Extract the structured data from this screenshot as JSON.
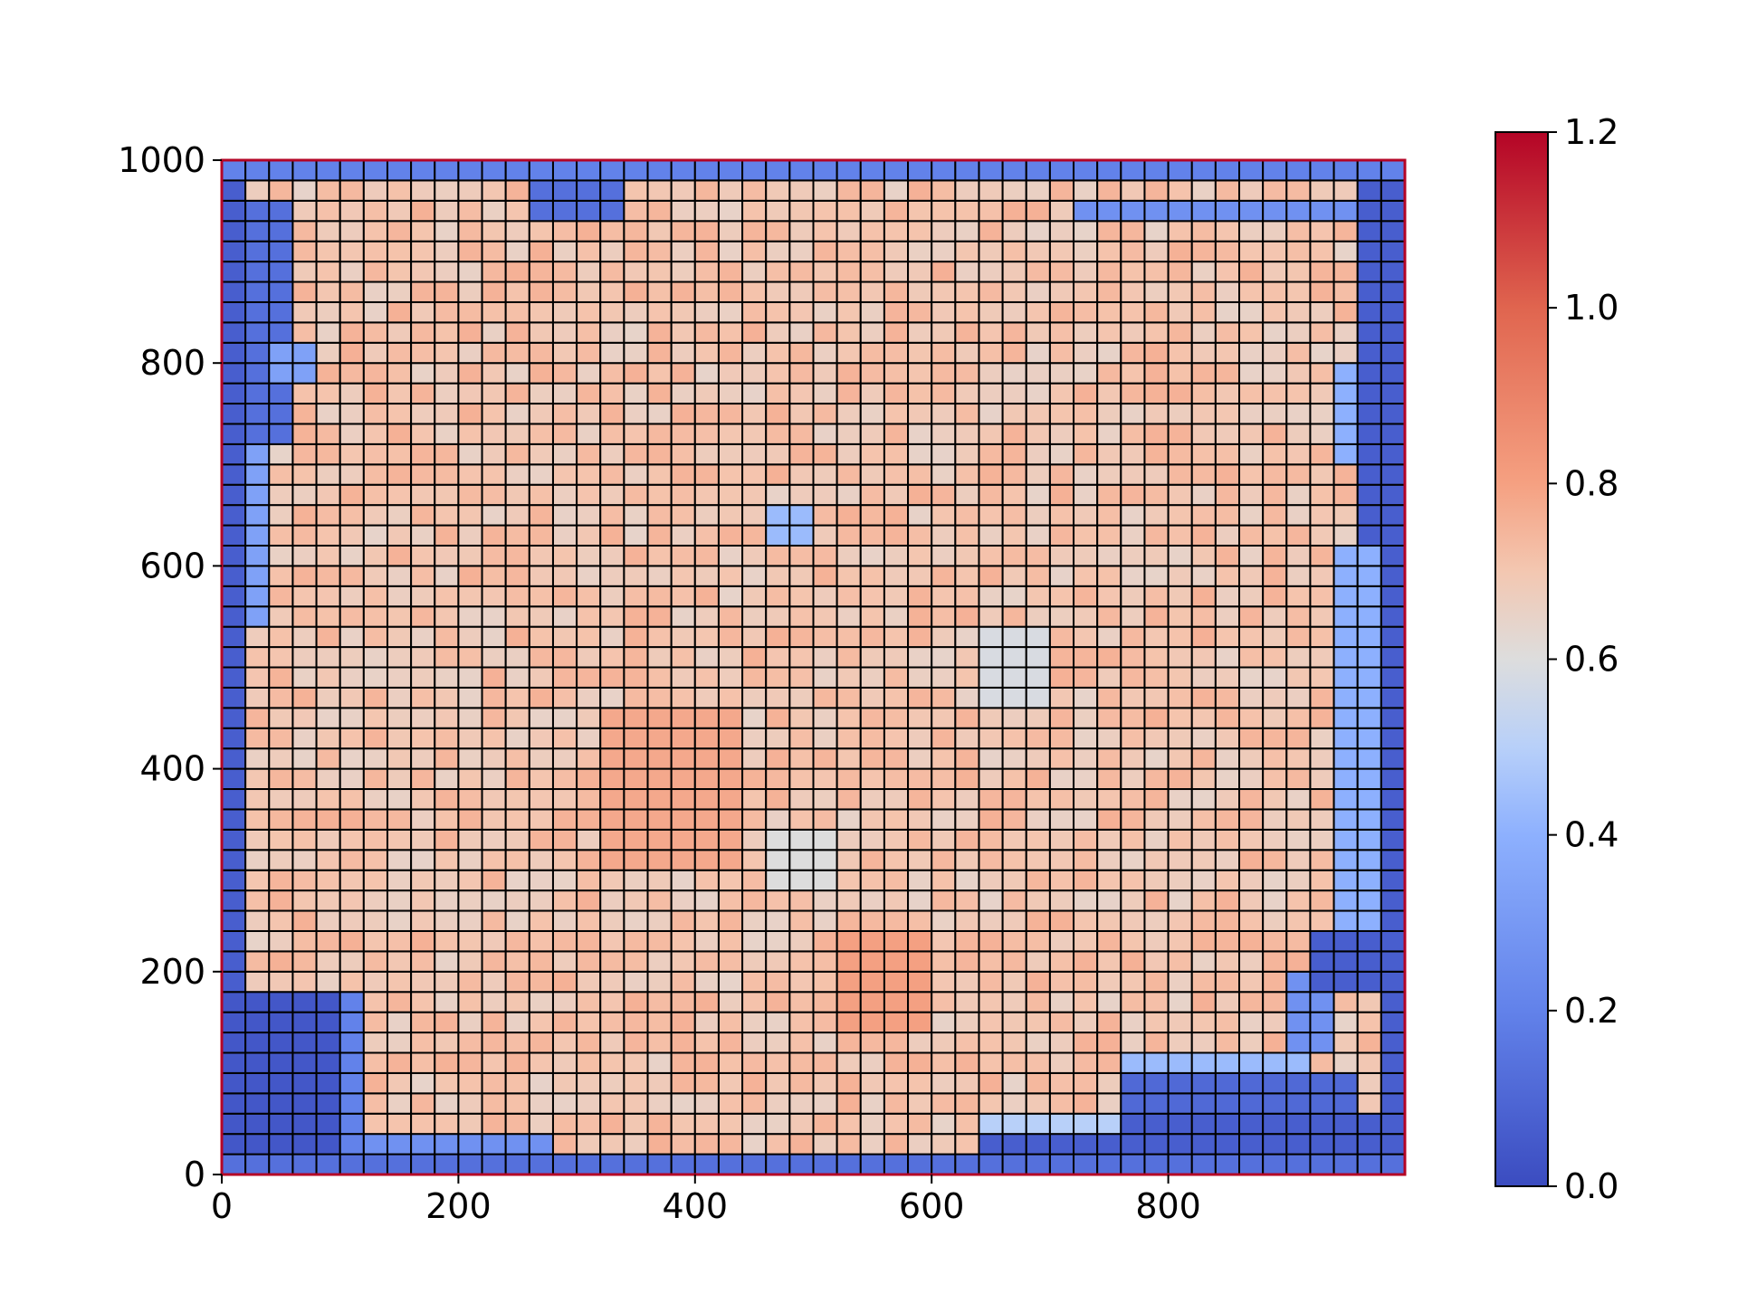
{
  "chart_data": {
    "type": "heatmap",
    "title": "",
    "xlabel": "",
    "ylabel": "",
    "xlim": [
      0,
      1000
    ],
    "ylim": [
      0,
      1000
    ],
    "grid": {
      "cols": 50,
      "rows": 50,
      "cell_size": 20
    },
    "x_ticks": [
      0,
      200,
      400,
      600,
      800
    ],
    "y_ticks": [
      0,
      200,
      400,
      600,
      800,
      1000
    ],
    "colorbar": {
      "colormap": "coolwarm",
      "min": 0.0,
      "max": 1.2,
      "ticks": [
        "0.0",
        "0.2",
        "0.4",
        "0.6",
        "0.8",
        "1.0",
        "1.2"
      ],
      "low_color": "#3b4cc0",
      "mid_color": "#dddddd",
      "high_color": "#b40426"
    },
    "cell_edge_color": "#000000",
    "boundary_color": "#b40426",
    "value_description": "Values near 0.0 (blue) form a border band along the edges, with blue blocks at the lower-left and lower-right corners and along the bottom and top edges; interior values are mostly 0.65-0.85, with a few hotter cells (~0.9) near x 520-580, y 140-240 and around x 320-440, y 300-460.",
    "regions": [
      {
        "x": [
          0,
          20
        ],
        "y": [
          0,
          1000
        ],
        "value": 0.05
      },
      {
        "x": [
          980,
          1000
        ],
        "y": [
          0,
          1000
        ],
        "value": 0.05
      },
      {
        "x": [
          0,
          1000
        ],
        "y": [
          980,
          1000
        ],
        "value": 0.15
      },
      {
        "x": [
          0,
          1000
        ],
        "y": [
          0,
          20
        ],
        "value": 0.1
      },
      {
        "x": [
          0,
          100
        ],
        "y": [
          20,
          180
        ],
        "value": 0.03
      },
      {
        "x": [
          100,
          120
        ],
        "y": [
          20,
          180
        ],
        "value": 0.15
      },
      {
        "x": [
          120,
          280
        ],
        "y": [
          20,
          40
        ],
        "value": 0.2
      },
      {
        "x": [
          640,
          980
        ],
        "y": [
          20,
          60
        ],
        "value": 0.05
      },
      {
        "x": [
          640,
          760
        ],
        "y": [
          40,
          60
        ],
        "value": 0.45
      },
      {
        "x": [
          760,
          960
        ],
        "y": [
          60,
          100
        ],
        "value": 0.08
      },
      {
        "x": [
          760,
          920
        ],
        "y": [
          100,
          120
        ],
        "value": 0.35
      },
      {
        "x": [
          900,
          940
        ],
        "y": [
          120,
          200
        ],
        "value": 0.2
      },
      {
        "x": [
          920,
          980
        ],
        "y": [
          180,
          240
        ],
        "value": 0.05
      },
      {
        "x": [
          940,
          980
        ],
        "y": [
          240,
          620
        ],
        "value": 0.3
      },
      {
        "x": [
          960,
          980
        ],
        "y": [
          620,
          980
        ],
        "value": 0.05
      },
      {
        "x": [
          940,
          960
        ],
        "y": [
          700,
          800
        ],
        "value": 0.3
      },
      {
        "x": [
          20,
          60
        ],
        "y": [
          720,
          960
        ],
        "value": 0.1
      },
      {
        "x": [
          20,
          40
        ],
        "y": [
          540,
          720
        ],
        "value": 0.25
      },
      {
        "x": [
          40,
          80
        ],
        "y": [
          780,
          820
        ],
        "value": 0.25
      },
      {
        "x": [
          260,
          340
        ],
        "y": [
          940,
          980
        ],
        "value": 0.1
      },
      {
        "x": [
          720,
          960
        ],
        "y": [
          940,
          960
        ],
        "value": 0.2
      },
      {
        "x": [
          460,
          500
        ],
        "y": [
          620,
          660
        ],
        "value": 0.35
      },
      {
        "x": [
          520,
          600
        ],
        "y": [
          140,
          240
        ],
        "value": 0.88
      },
      {
        "x": [
          320,
          440
        ],
        "y": [
          300,
          460
        ],
        "value": 0.85
      },
      {
        "x": [
          460,
          520
        ],
        "y": [
          280,
          340
        ],
        "value": 0.6
      },
      {
        "x": [
          640,
          700
        ],
        "y": [
          460,
          540
        ],
        "value": 0.58
      }
    ]
  }
}
